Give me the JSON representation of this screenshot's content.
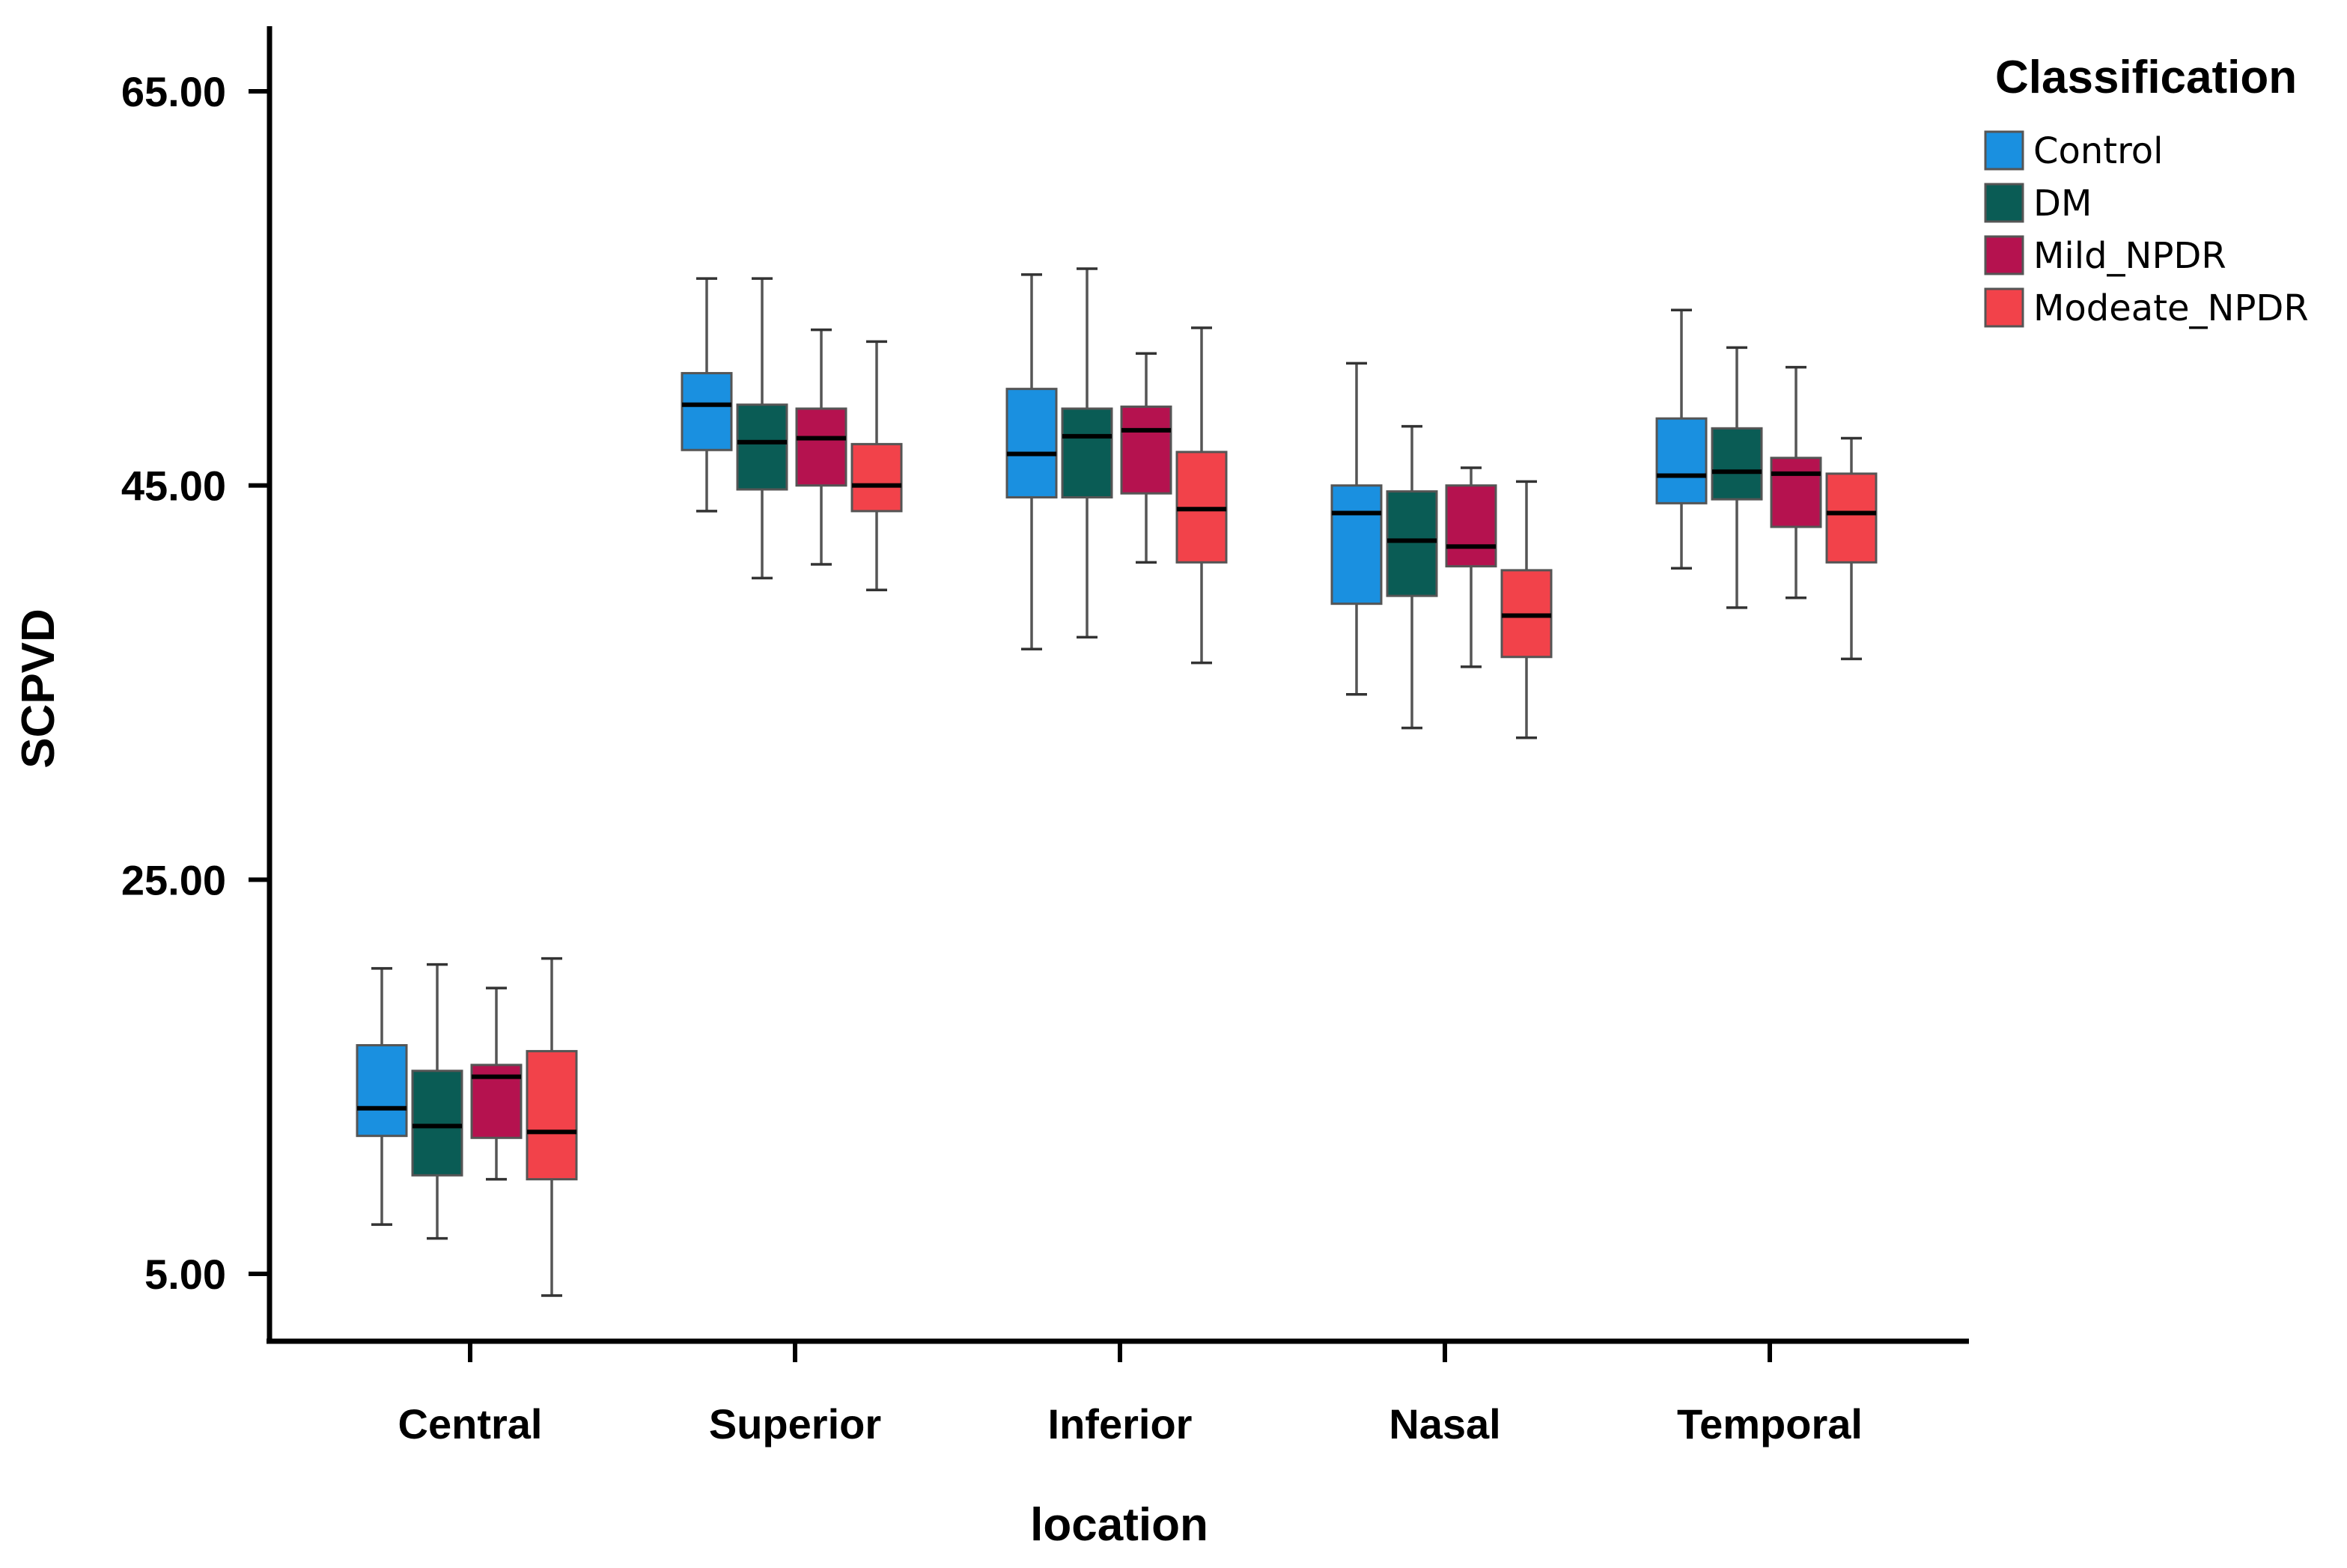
{
  "chart_data": {
    "type": "boxplot",
    "title": "",
    "xlabel": "location",
    "ylabel": "SCPVD",
    "ylim": [
      2,
      68
    ],
    "yticks": [
      "5.00",
      "25.00",
      "45.00",
      "65.00"
    ],
    "categories": [
      "Central",
      "Superior",
      "Inferior",
      "Nasal",
      "Temporal"
    ],
    "legend": {
      "title": "Classification",
      "placement": "top-right"
    },
    "series": [
      {
        "name": "Control",
        "color": "#1a90e0",
        "boxes": [
          {
            "min": 7.5,
            "q1": 12.0,
            "median": 13.4,
            "q3": 16.6,
            "max": 20.5
          },
          {
            "min": 43.7,
            "q1": 46.8,
            "median": 49.1,
            "q3": 50.7,
            "max": 55.5
          },
          {
            "min": 36.7,
            "q1": 44.4,
            "median": 46.6,
            "q3": 49.9,
            "max": 55.7
          },
          {
            "min": 34.4,
            "q1": 39.0,
            "median": 43.6,
            "q3": 45.0,
            "max": 51.2
          },
          {
            "min": 40.8,
            "q1": 44.1,
            "median": 45.5,
            "q3": 48.4,
            "max": 53.9
          }
        ]
      },
      {
        "name": "DM",
        "color": "#0a5c55",
        "boxes": [
          {
            "min": 6.8,
            "q1": 10.0,
            "median": 12.5,
            "q3": 15.3,
            "max": 20.7
          },
          {
            "min": 40.3,
            "q1": 44.8,
            "median": 47.2,
            "q3": 49.1,
            "max": 55.5
          },
          {
            "min": 37.3,
            "q1": 44.4,
            "median": 47.5,
            "q3": 48.9,
            "max": 56.0
          },
          {
            "min": 32.7,
            "q1": 39.4,
            "median": 42.2,
            "q3": 44.7,
            "max": 48.0
          },
          {
            "min": 38.8,
            "q1": 44.3,
            "median": 45.7,
            "q3": 47.9,
            "max": 52.0
          }
        ]
      },
      {
        "name": "Mild_NPDR",
        "color": "#b5124f",
        "boxes": [
          {
            "min": 9.8,
            "q1": 11.9,
            "median": 15.0,
            "q3": 15.6,
            "max": 19.5
          },
          {
            "min": 41.0,
            "q1": 45.0,
            "median": 47.4,
            "q3": 48.9,
            "max": 52.9
          },
          {
            "min": 41.1,
            "q1": 44.6,
            "median": 47.8,
            "q3": 49.0,
            "max": 51.7
          },
          {
            "min": 35.8,
            "q1": 40.9,
            "median": 41.9,
            "q3": 45.0,
            "max": 45.9
          },
          {
            "min": 39.3,
            "q1": 42.9,
            "median": 45.6,
            "q3": 46.4,
            "max": 51.0
          }
        ]
      },
      {
        "name": "Modeate_NPDR",
        "color": "#f2424a",
        "boxes": [
          {
            "min": 3.9,
            "q1": 9.8,
            "median": 12.2,
            "q3": 16.3,
            "max": 21.0
          },
          {
            "min": 39.7,
            "q1": 43.7,
            "median": 45.0,
            "q3": 47.1,
            "max": 52.3
          },
          {
            "min": 36.0,
            "q1": 41.1,
            "median": 43.8,
            "q3": 46.7,
            "max": 53.0
          },
          {
            "min": 32.2,
            "q1": 36.3,
            "median": 38.4,
            "q3": 40.7,
            "max": 45.2
          },
          {
            "min": 36.2,
            "q1": 41.1,
            "median": 43.6,
            "q3": 45.6,
            "max": 47.4
          }
        ]
      }
    ]
  }
}
